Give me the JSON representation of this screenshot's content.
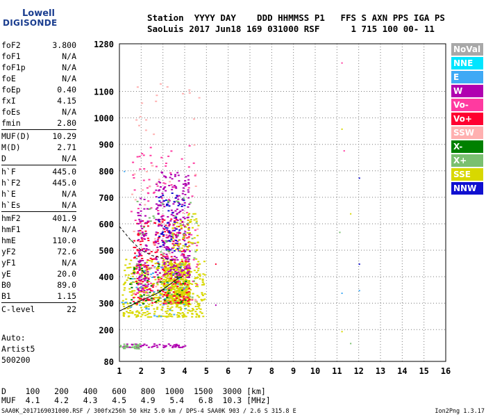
{
  "logo": {
    "line1": "Lowell",
    "line2": "DIGISONDE"
  },
  "header": {
    "labels": [
      "Station",
      "YYYY",
      "DAY",
      "DDD",
      "HHMMSS",
      "P1",
      "FFS",
      "S",
      "AXN",
      "PPS",
      "IGA",
      "PS"
    ],
    "station": "SaoLuis",
    "year": "2017",
    "date": "Jun18",
    "doy": "169",
    "time": "031000",
    "p1": "RSF",
    "s": "1",
    "axn": "715",
    "pps": "100",
    "iga": "00-",
    "ps": "11"
  },
  "params": [
    {
      "name": "foF2",
      "value": "3.800"
    },
    {
      "name": "foF1",
      "value": "N/A"
    },
    {
      "name": "foF1p",
      "value": "N/A"
    },
    {
      "name": "foE",
      "value": "N/A"
    },
    {
      "name": "foEp",
      "value": "0.40"
    },
    {
      "name": "fxI",
      "value": "4.15"
    },
    {
      "name": "foEs",
      "value": "N/A"
    },
    {
      "name": "fmin",
      "value": "2.80"
    },
    {
      "name": "MUF(D)",
      "value": "10.29"
    },
    {
      "name": "M(D)",
      "value": "2.71"
    },
    {
      "name": "D",
      "value": "N/A"
    },
    {
      "name": "h`F",
      "value": "445.0"
    },
    {
      "name": "h`F2",
      "value": "445.0"
    },
    {
      "name": "h`E",
      "value": "N/A"
    },
    {
      "name": "h`Es",
      "value": "N/A"
    },
    {
      "name": "hmF2",
      "value": "401.9"
    },
    {
      "name": "hmF1",
      "value": "N/A"
    },
    {
      "name": "hmE",
      "value": "110.0"
    },
    {
      "name": "yF2",
      "value": "72.6"
    },
    {
      "name": "yF1",
      "value": "N/A"
    },
    {
      "name": "yE",
      "value": "20.0"
    },
    {
      "name": "B0",
      "value": "89.0"
    },
    {
      "name": "B1",
      "value": "1.15"
    },
    {
      "name": "C-level",
      "value": "22"
    }
  ],
  "auto": {
    "line1": "Auto:",
    "line2": "Artist5",
    "line3": "500200"
  },
  "legend": [
    {
      "label": "NoVal",
      "color": "#a8a8a8"
    },
    {
      "label": "NNE",
      "color": "#00e5ff"
    },
    {
      "label": "E",
      "color": "#3fa9f5"
    },
    {
      "label": "W",
      "color": "#b000b0"
    },
    {
      "label": "Vo-",
      "color": "#ff3aa0"
    },
    {
      "label": "Vo+",
      "color": "#ff0030"
    },
    {
      "label": "SSW",
      "color": "#ffb0b0"
    },
    {
      "label": "X-",
      "color": "#008000"
    },
    {
      "label": "X+",
      "color": "#7ac070"
    },
    {
      "label": "SSE",
      "color": "#d8d800"
    },
    {
      "label": "NNW",
      "color": "#1010d0"
    }
  ],
  "bottom_table": {
    "d_label": "D",
    "d_values": [
      "100",
      "200",
      "400",
      "600",
      "800",
      "1000",
      "1500",
      "3000"
    ],
    "d_unit": "[km]",
    "muf_label": "MUF",
    "muf_values": [
      "4.1",
      "4.2",
      "4.3",
      "4.5",
      "4.9",
      "5.4",
      "6.8",
      "10.3"
    ],
    "muf_unit": "[MHz]"
  },
  "footer": {
    "left": "SAA0K_2017169031000.RSF / 300fx256h 50 kHz 5.0 km / DPS-4 SAA0K 903 / 2.6 S 315.8 E",
    "right": "Ion2Png 1.3.17"
  },
  "chart_data": {
    "type": "scatter",
    "x_ticks": [
      1,
      2,
      3,
      4,
      5,
      6,
      7,
      8,
      9,
      10,
      11,
      12,
      13,
      14,
      15,
      16
    ],
    "y_ticks": [
      80,
      200,
      300,
      400,
      500,
      600,
      700,
      800,
      900,
      1000,
      1100,
      1280
    ],
    "xlim": [
      1,
      16
    ],
    "ylim": [
      80,
      1280
    ],
    "grid": true,
    "traces": [
      {
        "name": "profile",
        "color": "#000000",
        "points": [
          [
            1.0,
            270
          ],
          [
            2.0,
            310
          ],
          [
            2.8,
            340
          ],
          [
            3.3,
            370
          ],
          [
            3.8,
            400
          ]
        ]
      },
      {
        "name": "dashed",
        "color": "#000000",
        "points": [
          [
            1.0,
            590
          ],
          [
            1.5,
            540
          ],
          [
            2.0,
            500
          ],
          [
            2.5,
            480
          ],
          [
            3.0,
            470
          ],
          [
            3.5,
            460
          ]
        ]
      }
    ],
    "clusters": [
      {
        "color": "#d8d800",
        "x": [
          1.1,
          4.9
        ],
        "y": [
          250,
          470
        ],
        "n": 450
      },
      {
        "color": "#d8d800",
        "x": [
          3.0,
          4.2
        ],
        "y": [
          300,
          460
        ],
        "n": 500
      },
      {
        "color": "#ff0030",
        "x": [
          1.6,
          4.2
        ],
        "y": [
          300,
          620
        ],
        "n": 260
      },
      {
        "color": "#b000b0",
        "x": [
          2.6,
          4.2
        ],
        "y": [
          400,
          800
        ],
        "n": 260
      },
      {
        "color": "#ff3aa0",
        "x": [
          1.5,
          4.6
        ],
        "y": [
          300,
          900
        ],
        "n": 120
      },
      {
        "color": "#1010d0",
        "x": [
          2.7,
          4.0
        ],
        "y": [
          500,
          720
        ],
        "n": 60
      },
      {
        "color": "#7ac070",
        "x": [
          1.5,
          4.5
        ],
        "y": [
          300,
          700
        ],
        "n": 80
      },
      {
        "color": "#008000",
        "x": [
          1.3,
          4.1
        ],
        "y": [
          300,
          450
        ],
        "n": 50
      },
      {
        "color": "#3fa9f5",
        "x": [
          1.0,
          4.0
        ],
        "y": [
          250,
          500
        ],
        "n": 40
      },
      {
        "color": "#ffb0b0",
        "x": [
          1.5,
          4.7
        ],
        "y": [
          300,
          1150
        ],
        "n": 60
      },
      {
        "color": "#b000b0",
        "x": [
          1.8,
          2.3
        ],
        "y": [
          350,
          700
        ],
        "n": 80
      },
      {
        "color": "#d8d800",
        "x": [
          3.4,
          4.6
        ],
        "y": [
          500,
          650
        ],
        "n": 60
      },
      {
        "color": "#b000b0",
        "x": [
          1.1,
          4.0
        ],
        "y": [
          135,
          148
        ],
        "n": 60
      },
      {
        "color": "#7ac070",
        "x": [
          1.0,
          1.9
        ],
        "y": [
          130,
          150
        ],
        "n": 30
      }
    ],
    "outliers": [
      {
        "x": 11.2,
        "y": 1210,
        "color": "#ff3aa0"
      },
      {
        "x": 11.2,
        "y": 960,
        "color": "#d8d800"
      },
      {
        "x": 11.3,
        "y": 878,
        "color": "#ff3aa0"
      },
      {
        "x": 12.0,
        "y": 775,
        "color": "#1010d0"
      },
      {
        "x": 11.6,
        "y": 640,
        "color": "#d8d800"
      },
      {
        "x": 11.1,
        "y": 570,
        "color": "#7ac070"
      },
      {
        "x": 12.0,
        "y": 450,
        "color": "#1010d0"
      },
      {
        "x": 11.2,
        "y": 340,
        "color": "#3fa9f5"
      },
      {
        "x": 12.0,
        "y": 350,
        "color": "#3fa9f5"
      },
      {
        "x": 11.2,
        "y": 195,
        "color": "#d8d800"
      },
      {
        "x": 11.6,
        "y": 150,
        "color": "#7ac070"
      },
      {
        "x": 5.4,
        "y": 450,
        "color": "#ff0030"
      },
      {
        "x": 5.4,
        "y": 295,
        "color": "#b000b0"
      },
      {
        "x": 1.2,
        "y": 800,
        "color": "#3fa9f5"
      }
    ]
  }
}
